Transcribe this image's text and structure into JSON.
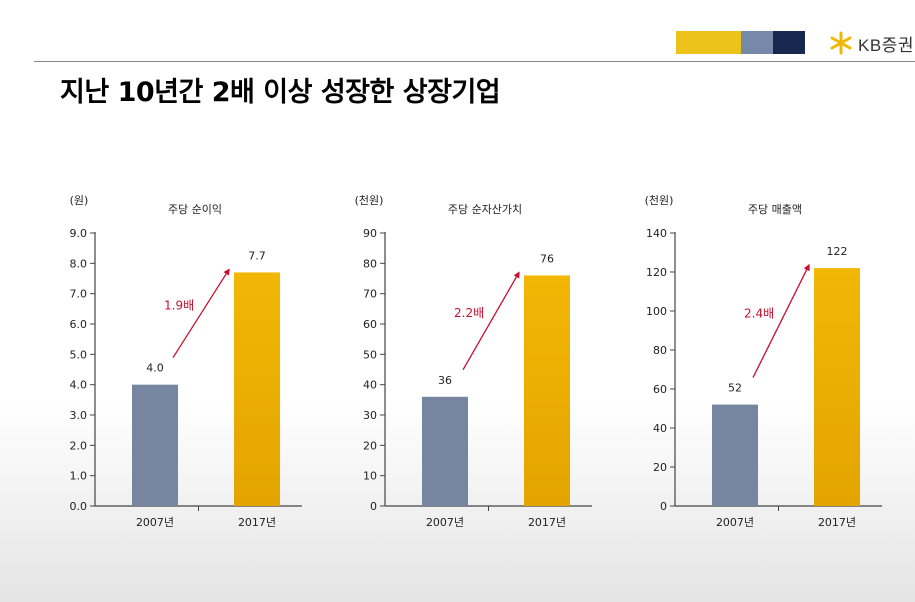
{
  "header": {
    "title": "지난 10년간 2배 이상 성장한 상장기업",
    "logo_text": "KB증권",
    "brand_colors": [
      "#ECC31A",
      "#7789A8",
      "#16284E"
    ],
    "logo_icon": "kb-star-icon"
  },
  "colors": {
    "bar_2007": "#7686A0",
    "bar_2017": "#F2B705",
    "arrow": "#C8102E"
  },
  "chart_data": [
    {
      "type": "bar",
      "title": "주당 순이익",
      "unit": "(원)",
      "categories": [
        "2007년",
        "2017년"
      ],
      "values": [
        4.0,
        7.7
      ],
      "value_labels": [
        "4.0",
        "7.7"
      ],
      "ylim": [
        0,
        9
      ],
      "yticks": [
        "0.0",
        "1.0",
        "2.0",
        "3.0",
        "4.0",
        "5.0",
        "6.0",
        "7.0",
        "8.0",
        "9.0"
      ],
      "growth_label": "1.9배"
    },
    {
      "type": "bar",
      "title": "주당 순자산가치",
      "unit": "(천원)",
      "categories": [
        "2007년",
        "2017년"
      ],
      "values": [
        36,
        76
      ],
      "value_labels": [
        "36",
        "76"
      ],
      "ylim": [
        0,
        90
      ],
      "yticks": [
        "0",
        "10",
        "20",
        "30",
        "40",
        "50",
        "60",
        "70",
        "80",
        "90"
      ],
      "growth_label": "2.2배"
    },
    {
      "type": "bar",
      "title": "주당 매출액",
      "unit": "(천원)",
      "categories": [
        "2007년",
        "2017년"
      ],
      "values": [
        52,
        122
      ],
      "value_labels": [
        "52",
        "122"
      ],
      "ylim": [
        0,
        140
      ],
      "yticks": [
        "0",
        "20",
        "40",
        "60",
        "80",
        "100",
        "120",
        "140"
      ],
      "growth_label": "2.4배"
    }
  ]
}
